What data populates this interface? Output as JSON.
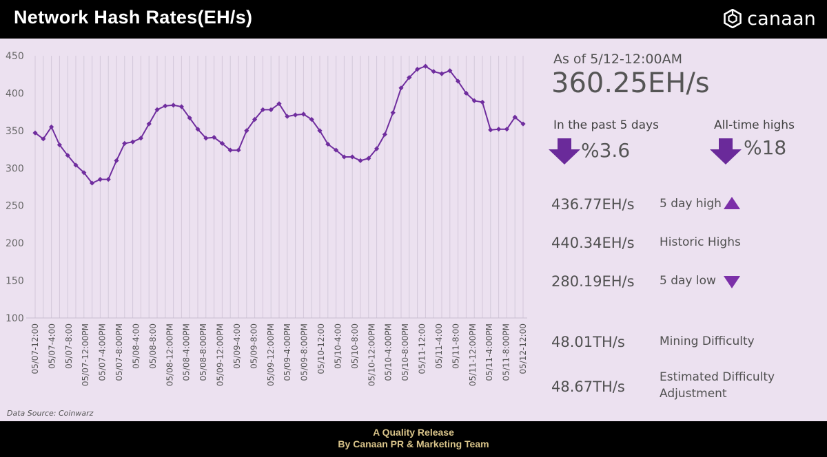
{
  "header": {
    "title": "Network Hash Rates(EH/s)",
    "brand": "canaan"
  },
  "summary": {
    "as_of": "As of 5/12-12:00AM",
    "current": "360.25EH/s",
    "past_label": "In the past 5 days",
    "past_value": "%3.6",
    "ath_label": "All-time highs",
    "ath_value": "%18",
    "high_value": "436.77EH/s",
    "high_label": "5 day high",
    "historic_value": "440.34EH/s",
    "historic_label": "Historic Highs",
    "low_value": "280.19EH/s",
    "low_label": "5 day low",
    "difficulty_value": "48.01TH/s",
    "difficulty_label": "Mining Difficulty",
    "est_value": "48.67TH/s",
    "est_label": "Estimated Difficulty Adjustment"
  },
  "source": "Data Source: Coinwarz",
  "footer": {
    "line1": "A Quality Release",
    "line2": "By Canaan PR & Marketing Team"
  },
  "colors": {
    "line": "#6f2d9e",
    "arrow": "#6a2a9a",
    "triangle": "#7b2fa8",
    "background": "#ece1f0",
    "grid": "#d3c8da"
  },
  "chart_data": {
    "type": "line",
    "ylim": [
      100,
      450
    ],
    "yticks": [
      100,
      150,
      200,
      250,
      300,
      350,
      400,
      450
    ],
    "grid": "vertical",
    "tick_labels": [
      "05/07-12:00",
      "05/07-4:00",
      "05/07-8:00",
      "05/07-12:00PM",
      "05/07-4:00PM",
      "05/07-8:00PM",
      "05/08-4:00",
      "05/08-8:00",
      "05/08-12:00PM",
      "05/08-4:00PM",
      "05/08-8:00PM",
      "05/09-12:00PM",
      "05/09-4:00",
      "05/09-8:00",
      "05/09-12:00PM",
      "05/09-4:00PM",
      "05/09-8:00PM",
      "05/10-12:00",
      "05/10-4:00",
      "05/10-8:00",
      "05/10-12:00PM",
      "05/10-4:00PM",
      "05/10-8:00PM",
      "05/11-12:00",
      "05/11-4:00",
      "05/11-8:00",
      "05/11-12:00PM",
      "05/11-4:00PM",
      "05/11-8:00PM",
      "05/12-12:00"
    ],
    "series": [
      {
        "values": [
          347,
          339,
          355,
          331,
          317,
          304,
          294,
          280,
          285,
          285,
          310,
          333,
          335,
          340,
          359,
          378,
          383,
          384,
          382,
          367,
          352,
          340,
          341,
          333,
          324,
          324,
          350,
          365,
          378,
          378,
          386,
          369,
          371,
          372,
          365,
          350,
          332,
          324,
          315,
          315,
          310,
          313,
          326,
          345,
          374,
          407,
          421,
          432,
          436,
          429,
          426,
          430,
          416,
          400,
          390,
          388,
          351,
          352,
          352,
          368,
          359
        ]
      }
    ]
  }
}
